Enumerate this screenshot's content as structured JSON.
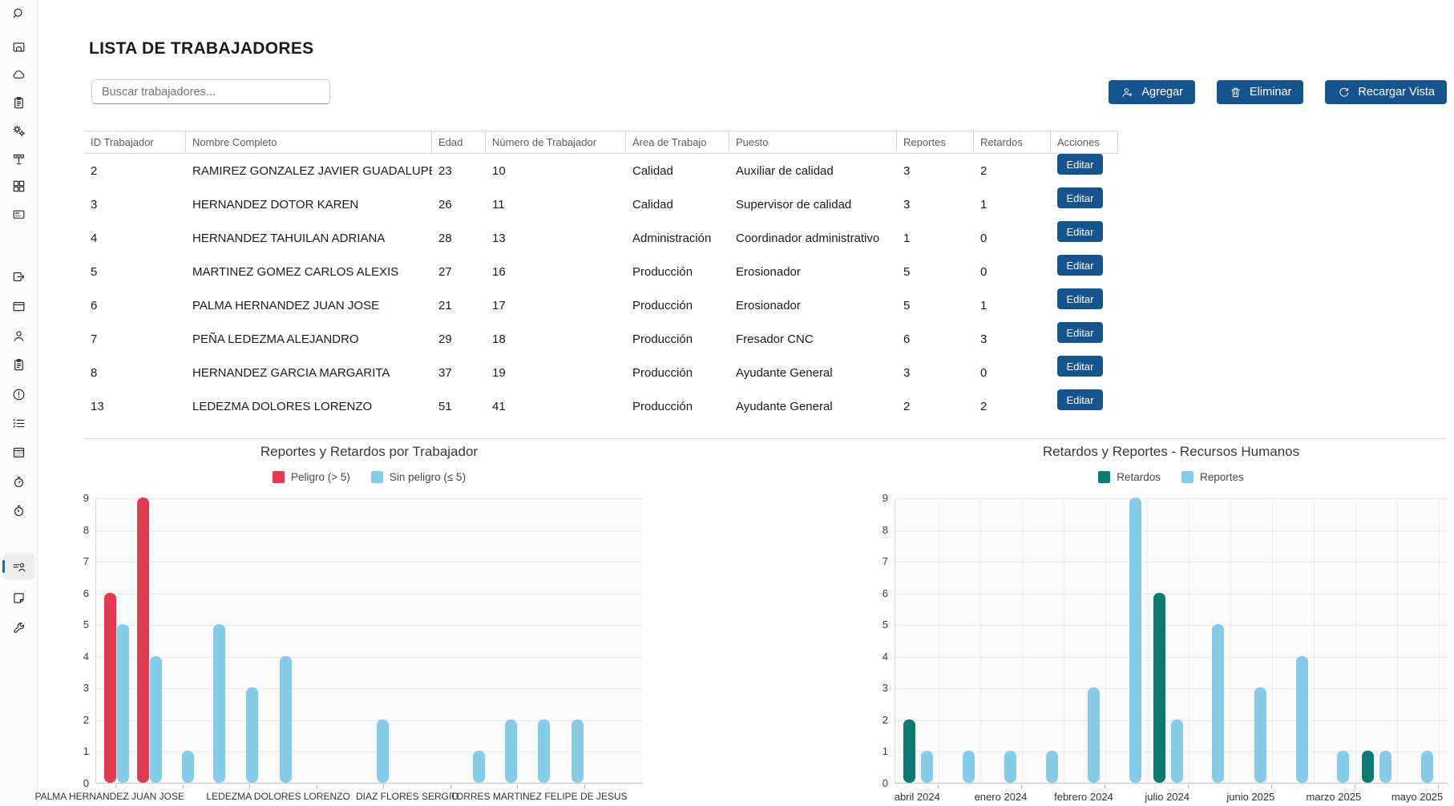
{
  "page_title": "LISTA DE TRABAJADORES",
  "search": {
    "placeholder": "Buscar trabajadores..."
  },
  "toolbar": {
    "buttons": [
      {
        "id": "agregar",
        "label": "Agregar",
        "icon": "person-add-icon"
      },
      {
        "id": "eliminar",
        "label": "Eliminar",
        "icon": "trash-icon"
      },
      {
        "id": "recargar",
        "label": "Recargar Vista",
        "icon": "refresh-icon"
      }
    ]
  },
  "sidebar": {
    "items": [
      {
        "icon": "search-icon"
      },
      {
        "icon": "machine-icon"
      },
      {
        "icon": "cloud-icon"
      },
      {
        "icon": "clipboard-icon"
      },
      {
        "icon": "gears-icon"
      },
      {
        "icon": "sign-icon"
      },
      {
        "icon": "apps-grid-icon"
      },
      {
        "icon": "control-panel-icon"
      },
      {
        "icon": "open-window-icon"
      },
      {
        "icon": "window-icon"
      },
      {
        "icon": "person-icon"
      },
      {
        "icon": "report-clipboard-icon"
      },
      {
        "icon": "alert-icon"
      },
      {
        "icon": "checklist-icon"
      },
      {
        "icon": "calendar-icon"
      },
      {
        "icon": "stopwatch-icon"
      },
      {
        "icon": "stopwatch-2-icon"
      },
      {
        "icon": "worker-list-icon",
        "selected": true
      },
      {
        "icon": "note-icon"
      },
      {
        "icon": "wrench-icon"
      },
      {
        "icon": "gear-partial-icon"
      }
    ]
  },
  "table": {
    "columns": [
      "ID Trabajador",
      "Nombre Completo",
      "Edad",
      "Número de Trabajador",
      "Área de Trabajo",
      "Puesto",
      "Reportes",
      "Retardos",
      "Acciones"
    ],
    "action_label": "Editar",
    "rows": [
      [
        "2",
        "RAMIREZ GONZALEZ JAVIER GUADALUPE",
        "23",
        "10",
        "Calidad",
        "Auxiliar de calidad",
        "3",
        "2"
      ],
      [
        "3",
        "HERNANDEZ DOTOR KAREN",
        "26",
        "11",
        "Calidad",
        "Supervisor de calidad",
        "3",
        "1"
      ],
      [
        "4",
        "HERNANDEZ TAHUILAN ADRIANA",
        "28",
        "13",
        "Administración",
        "Coordinador administrativo",
        "1",
        "0"
      ],
      [
        "5",
        "MARTINEZ GOMEZ CARLOS ALEXIS",
        "27",
        "16",
        "Producción",
        "Erosionador",
        "5",
        "0"
      ],
      [
        "6",
        "PALMA HERNANDEZ JUAN JOSE",
        "21",
        "17",
        "Producción",
        "Erosionador",
        "5",
        "1"
      ],
      [
        "7",
        "PEÑA LEDEZMA ALEJANDRO",
        "29",
        "18",
        "Producción",
        "Fresador CNC",
        "6",
        "3"
      ],
      [
        "8",
        "HERNANDEZ GARCIA MARGARITA",
        "37",
        "19",
        "Producción",
        "Ayudante General",
        "3",
        "0"
      ],
      [
        "13",
        "LEDEZMA DOLORES LORENZO",
        "51",
        "41",
        "Producción",
        "Ayudante General",
        "2",
        "2"
      ]
    ]
  },
  "colors": {
    "button_blue": "#17548e",
    "danger": "#e13a51",
    "safe": "#85cbea",
    "teal": "#0c7a72",
    "nav_accent": "#0f6cbd"
  },
  "chart_data": [
    {
      "type": "bar",
      "title": "Reportes y Retardos por Trabajador",
      "legend": [
        {
          "label": "Peligro (> 5)",
          "color_key": "danger"
        },
        {
          "label": "Sin peligro (≤ 5)",
          "color_key": "safe"
        }
      ],
      "ylim": [
        0,
        9
      ],
      "yticks": [
        0,
        1,
        2,
        3,
        4,
        5,
        6,
        7,
        8,
        9
      ],
      "grid": "horizontal",
      "bars": [
        {
          "x": 0.025,
          "value": 6,
          "color_key": "danger"
        },
        {
          "x": 0.049,
          "value": 5,
          "color_key": "safe"
        },
        {
          "x": 0.085,
          "value": 9,
          "color_key": "danger"
        },
        {
          "x": 0.109,
          "value": 4,
          "color_key": "safe"
        },
        {
          "x": 0.167,
          "value": 1,
          "color_key": "safe"
        },
        {
          "x": 0.225,
          "value": 5,
          "color_key": "safe"
        },
        {
          "x": 0.285,
          "value": 3,
          "color_key": "safe"
        },
        {
          "x": 0.346,
          "value": 4,
          "color_key": "safe"
        },
        {
          "x": 0.524,
          "value": 2,
          "color_key": "safe"
        },
        {
          "x": 0.699,
          "value": 1,
          "color_key": "safe"
        },
        {
          "x": 0.758,
          "value": 2,
          "color_key": "safe"
        },
        {
          "x": 0.818,
          "value": 2,
          "color_key": "safe"
        },
        {
          "x": 0.879,
          "value": 2,
          "color_key": "safe"
        }
      ],
      "xticks": [
        0.037,
        0.159,
        0.281,
        0.404,
        0.526,
        0.648,
        0.77,
        0.893
      ],
      "xlabels": [
        {
          "x": 0.026,
          "text": "PALMA HERNANDEZ JUAN JOSE"
        },
        {
          "x": 0.334,
          "text": "LEDEZMA DOLORES LORENZO"
        },
        {
          "x": 0.57,
          "text": "DIAZ FLORES SERGIO"
        },
        {
          "x": 0.81,
          "text": "TORRES MARTINEZ FELIPE DE JESUS"
        }
      ],
      "xlabel_size": 12
    },
    {
      "type": "bar",
      "title": "Retardos y Reportes - Recursos Humanos",
      "legend": [
        {
          "label": "Retardos",
          "color_key": "teal"
        },
        {
          "label": "Reportes",
          "color_key": "safe"
        }
      ],
      "ylim": [
        0,
        9
      ],
      "yticks": [
        0,
        1,
        2,
        3,
        4,
        5,
        6,
        7,
        8,
        9
      ],
      "grid": "both",
      "vgrid": [
        0.078,
        0.154,
        0.229,
        0.304,
        0.38,
        0.455,
        0.53,
        0.606,
        0.681,
        0.757,
        0.832,
        0.907,
        0.983
      ],
      "bars": [
        {
          "x": 0.025,
          "value": 2,
          "color_key": "teal"
        },
        {
          "x": 0.057,
          "value": 1,
          "color_key": "safe"
        },
        {
          "x": 0.132,
          "value": 1,
          "color_key": "safe"
        },
        {
          "x": 0.208,
          "value": 1,
          "color_key": "safe"
        },
        {
          "x": 0.283,
          "value": 1,
          "color_key": "safe"
        },
        {
          "x": 0.358,
          "value": 3,
          "color_key": "safe"
        },
        {
          "x": 0.434,
          "value": 9,
          "color_key": "safe"
        },
        {
          "x": 0.477,
          "value": 6,
          "color_key": "teal"
        },
        {
          "x": 0.509,
          "value": 2,
          "color_key": "safe"
        },
        {
          "x": 0.584,
          "value": 5,
          "color_key": "safe"
        },
        {
          "x": 0.66,
          "value": 3,
          "color_key": "safe"
        },
        {
          "x": 0.735,
          "value": 4,
          "color_key": "safe"
        },
        {
          "x": 0.81,
          "value": 1,
          "color_key": "safe"
        },
        {
          "x": 0.854,
          "value": 1,
          "color_key": "teal"
        },
        {
          "x": 0.886,
          "value": 1,
          "color_key": "safe"
        },
        {
          "x": 0.961,
          "value": 1,
          "color_key": "safe"
        }
      ],
      "xticks": [
        0.078,
        0.229,
        0.38,
        0.53,
        0.681,
        0.832,
        0.983
      ],
      "xlabels": [
        {
          "x": 0.041,
          "text": "abril 2024"
        },
        {
          "x": 0.192,
          "text": "enero 2024"
        },
        {
          "x": 0.342,
          "text": "febrero 2024"
        },
        {
          "x": 0.493,
          "text": "julio 2024"
        },
        {
          "x": 0.644,
          "text": "junio 2025"
        },
        {
          "x": 0.794,
          "text": "marzo 2025"
        },
        {
          "x": 0.945,
          "text": "mayo 2025"
        }
      ],
      "xlabel_size": 13
    }
  ]
}
